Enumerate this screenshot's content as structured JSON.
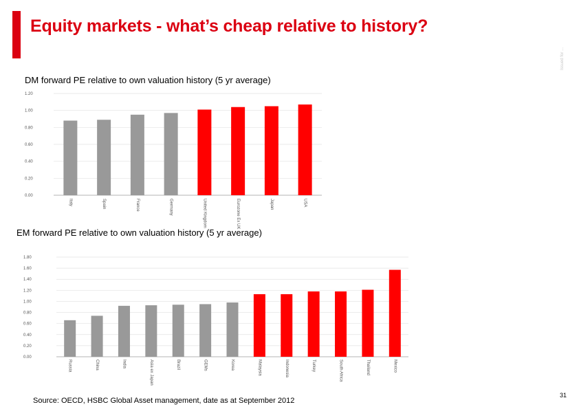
{
  "slide": {
    "title": "Equity markets - what’s cheap relative to history?",
    "side_note": "Issued for ...",
    "source": "Source: OECD, HSBC Global Asset management,  date as at September 2012",
    "page_number": "31",
    "accent_color": "#db0011"
  },
  "chart_data": [
    {
      "type": "bar",
      "title": "DM forward PE relative to own valuation history (5 yr average)",
      "categories": [
        "Italy",
        "Spain",
        "France",
        "Germany",
        "United Kingdom",
        "Eurozone Ex UK",
        "Japan",
        "USA"
      ],
      "values": [
        0.88,
        0.89,
        0.95,
        0.97,
        1.01,
        1.04,
        1.05,
        1.07
      ],
      "colors": [
        "#999999",
        "#999999",
        "#999999",
        "#999999",
        "#ff0000",
        "#ff0000",
        "#ff0000",
        "#ff0000"
      ],
      "yticks": [
        "0.00",
        "0.20",
        "0.40",
        "0.60",
        "0.80",
        "1.00",
        "1.20"
      ],
      "ylim": [
        0,
        1.2
      ],
      "grid": true
    },
    {
      "type": "bar",
      "title": "EM forward PE relative to own valuation history (5 yr average)",
      "categories": [
        "Russia",
        "China",
        "India",
        "Asia ex Japan",
        "Brazil",
        "GEMs",
        "Korea",
        "Malaysia",
        "Indonesia",
        "Turkey",
        "South Africa",
        "Thailand",
        "Mexico"
      ],
      "values": [
        0.66,
        0.74,
        0.92,
        0.93,
        0.94,
        0.95,
        0.98,
        1.13,
        1.13,
        1.18,
        1.18,
        1.21,
        1.57
      ],
      "colors": [
        "#999999",
        "#999999",
        "#999999",
        "#999999",
        "#999999",
        "#999999",
        "#999999",
        "#ff0000",
        "#ff0000",
        "#ff0000",
        "#ff0000",
        "#ff0000",
        "#ff0000"
      ],
      "yticks": [
        "0.00",
        "0.20",
        "0.40",
        "0.60",
        "0.80",
        "1.00",
        "1.20",
        "1.40",
        "1.60",
        "1.80"
      ],
      "ylim": [
        0,
        1.8
      ],
      "grid": true
    }
  ]
}
